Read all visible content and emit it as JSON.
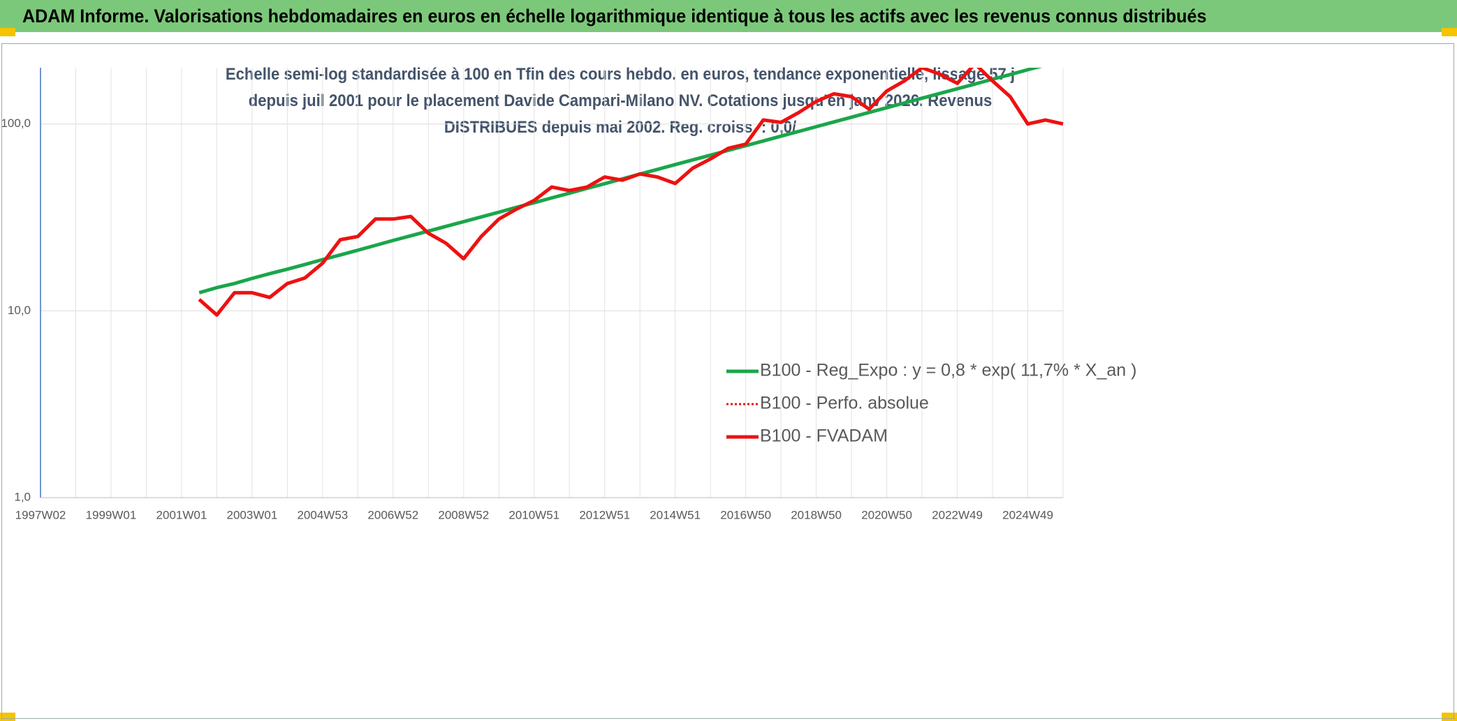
{
  "chart_data": {
    "type": "line",
    "title": "ADAM Informe. Valorisations hebdomadaires en euros en échelle logarithmique identique à tous les actifs avec les revenus connus distribués",
    "subtitle": "Echelle semi-log standardisée à 100 en Tfin des cours hebdo. en euros, tendance exponentielle, lissage 57 j depuis juil 2001 pour le placement Davide Campari-Milano NV. Cotations jusqu'en janv 2026. Revenus DISTRIBUES depuis mai 2002. Reg. croiss. : 0,0/",
    "categories": [
      "1997W02",
      null,
      null,
      null,
      "1999W01",
      null,
      null,
      null,
      "2001W01",
      null,
      null,
      null,
      "2003W01",
      null,
      null,
      null,
      "2004W53",
      null,
      null,
      null,
      "2006W52",
      null,
      null,
      null,
      "2008W52",
      null,
      null,
      null,
      "2010W51",
      null,
      null,
      null,
      "2012W51",
      null,
      null,
      null,
      "2014W51",
      null,
      null,
      null,
      "2016W50",
      null,
      null,
      null,
      "2018W50",
      null,
      null,
      null,
      "2020W50",
      null,
      null,
      null,
      "2022W49",
      null,
      null,
      null,
      "2024W49",
      null,
      null
    ],
    "series": [
      {
        "name": "B100 - Reg_Expo : y = 0,8 * exp( 11,7% *  X_an )",
        "color": "#1aa64a",
        "style": "solid",
        "values": [
          null,
          null,
          null,
          null,
          null,
          null,
          null,
          null,
          null,
          12.5,
          13.3,
          14.0,
          14.9,
          15.8,
          16.7,
          17.7,
          18.8,
          19.9,
          21.1,
          22.4,
          23.8,
          25.2,
          26.7,
          28.3,
          30.0,
          31.8,
          33.7,
          35.8,
          37.9,
          40.2,
          42.6,
          45.2,
          47.9,
          50.8,
          53.9,
          57.1,
          60.6,
          64.2,
          68.1,
          72.2,
          76.5,
          81.1,
          86.0,
          91.2,
          96.7,
          102.5,
          108.7,
          115.2,
          122.2,
          129.5,
          137.3,
          145.6,
          154.3,
          163.6,
          173.5,
          183.9,
          195.0,
          206.7,
          null
        ]
      },
      {
        "name": "B100 - Perfo. absolue",
        "color": "#ee1111",
        "style": "dotted",
        "values": [
          null,
          null,
          null,
          null,
          null,
          null,
          null,
          null,
          null,
          11.5,
          9.5,
          12.5,
          12.5,
          11.8,
          14,
          15,
          18,
          24,
          25,
          31,
          31,
          32,
          26,
          23,
          19,
          25,
          31,
          35,
          39,
          46,
          44,
          46,
          52,
          50,
          54,
          52,
          48,
          58,
          65,
          74,
          78,
          105,
          102,
          115,
          132,
          145,
          140,
          120,
          150,
          170,
          200,
          185,
          165,
          210,
          170,
          140,
          100,
          105,
          100
        ]
      },
      {
        "name": "B100 - FVADAM",
        "color": "#ee1111",
        "style": "solid",
        "values": [
          null,
          null,
          null,
          null,
          null,
          null,
          null,
          null,
          null,
          11.5,
          9.5,
          12.5,
          12.5,
          11.8,
          14,
          15,
          18,
          24,
          25,
          31,
          31,
          32,
          26,
          23,
          19,
          25,
          31,
          35,
          39,
          46,
          44,
          46,
          52,
          50,
          54,
          52,
          48,
          58,
          65,
          74,
          78,
          105,
          102,
          115,
          132,
          145,
          140,
          120,
          150,
          170,
          200,
          185,
          165,
          210,
          170,
          140,
          100,
          105,
          100
        ]
      }
    ],
    "ylim": [
      1,
      200
    ],
    "yticks": [
      {
        "value": 1,
        "label": "1,0"
      },
      {
        "value": 10,
        "label": "10,0"
      },
      {
        "value": 100,
        "label": "100,0"
      }
    ],
    "log_y": true,
    "grid": true,
    "legend": "lower right"
  }
}
